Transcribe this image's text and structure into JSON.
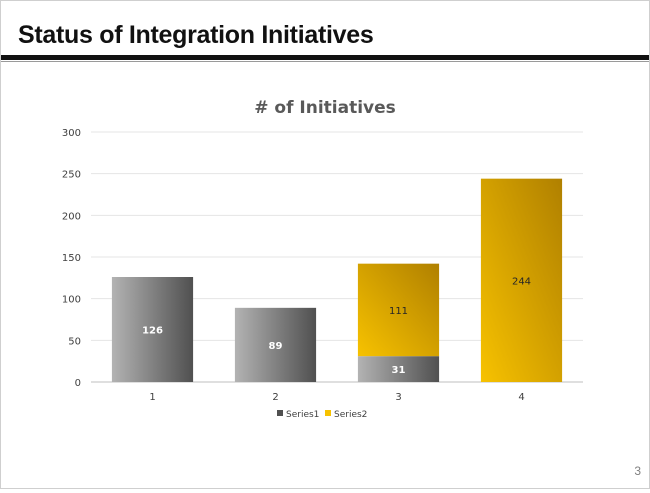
{
  "slide": {
    "title": "Status of Integration Initiatives",
    "page_number": "3"
  },
  "colors": {
    "series1_light": "#b3b3b3",
    "series1_dark": "#505050",
    "series2_light": "#f7c200",
    "series2_dark": "#b08000",
    "grid": "#e4e4e4",
    "axis": "#bfbfbf"
  },
  "chart_data": {
    "type": "bar",
    "stacked": true,
    "title": "# of Initiatives",
    "categories": [
      "1",
      "2",
      "3",
      "4"
    ],
    "series": [
      {
        "name": "Series1",
        "values": [
          126,
          89,
          31,
          0
        ]
      },
      {
        "name": "Series2",
        "values": [
          0,
          0,
          111,
          244
        ]
      }
    ],
    "data_labels": [
      [
        "126",
        "89",
        "31",
        ""
      ],
      [
        "",
        "",
        "111",
        "244"
      ]
    ],
    "ylim": [
      0,
      300
    ],
    "yticks": [
      0,
      50,
      100,
      150,
      200,
      250,
      300
    ],
    "grid": true,
    "legend": "bottom"
  }
}
